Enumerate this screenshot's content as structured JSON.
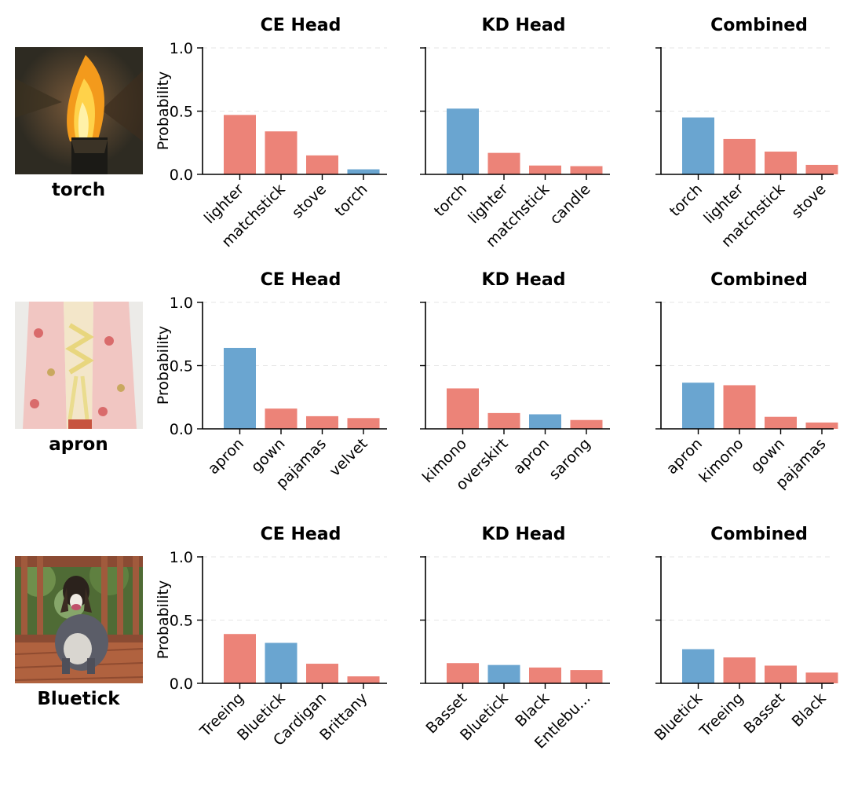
{
  "figure": {
    "colors": {
      "correct": "#6aa5d0",
      "incorrect": "#ec8378",
      "axis": "#000000",
      "grid": "#e6e6e6"
    },
    "rows": [
      {
        "label": "torch",
        "image_icon": "torch-flame-photo"
      },
      {
        "label": "apron",
        "image_icon": "apron-photo"
      },
      {
        "label": "Bluetick",
        "image_icon": "dog-on-deck-photo"
      }
    ]
  },
  "chart_data": [
    {
      "type": "bar",
      "row": "torch",
      "title": "CE Head",
      "ylabel": "Probability",
      "ylim": [
        0,
        1.0
      ],
      "yticks": [
        "0.0",
        "0.5",
        "1.0"
      ],
      "categories": [
        "lighter",
        "matchstick",
        "stove",
        "torch"
      ],
      "values": [
        0.47,
        0.34,
        0.15,
        0.04
      ],
      "correct": [
        false,
        false,
        false,
        true
      ]
    },
    {
      "type": "bar",
      "row": "torch",
      "title": "KD Head",
      "ylabel": "",
      "ylim": [
        0,
        1.0
      ],
      "categories": [
        "torch",
        "lighter",
        "matchstick",
        "candle"
      ],
      "values": [
        0.52,
        0.17,
        0.07,
        0.065
      ],
      "correct": [
        true,
        false,
        false,
        false
      ]
    },
    {
      "type": "bar",
      "row": "torch",
      "title": "Combined",
      "ylabel": "",
      "ylim": [
        0,
        1.0
      ],
      "categories": [
        "torch",
        "lighter",
        "matchstick",
        "stove"
      ],
      "values": [
        0.45,
        0.28,
        0.18,
        0.075
      ],
      "correct": [
        true,
        false,
        false,
        false
      ]
    },
    {
      "type": "bar",
      "row": "apron",
      "title": "CE Head",
      "ylabel": "Probability",
      "ylim": [
        0,
        1.0
      ],
      "yticks": [
        "0.0",
        "0.5",
        "1.0"
      ],
      "categories": [
        "apron",
        "gown",
        "pajamas",
        "velvet"
      ],
      "values": [
        0.64,
        0.16,
        0.1,
        0.085
      ],
      "correct": [
        true,
        false,
        false,
        false
      ]
    },
    {
      "type": "bar",
      "row": "apron",
      "title": "KD Head",
      "ylabel": "",
      "ylim": [
        0,
        1.0
      ],
      "categories": [
        "kimono",
        "overskirt",
        "apron",
        "sarong"
      ],
      "values": [
        0.32,
        0.125,
        0.115,
        0.07
      ],
      "correct": [
        false,
        false,
        true,
        false
      ]
    },
    {
      "type": "bar",
      "row": "apron",
      "title": "Combined",
      "ylabel": "",
      "ylim": [
        0,
        1.0
      ],
      "categories": [
        "apron",
        "kimono",
        "gown",
        "pajamas"
      ],
      "values": [
        0.365,
        0.345,
        0.095,
        0.05
      ],
      "correct": [
        true,
        false,
        false,
        false
      ]
    },
    {
      "type": "bar",
      "row": "Bluetick",
      "title": "CE Head",
      "ylabel": "Probability",
      "ylim": [
        0,
        1.0
      ],
      "yticks": [
        "0.0",
        "0.5",
        "1.0"
      ],
      "categories": [
        "Treeing",
        "Bluetick",
        "Cardigan",
        "Brittany"
      ],
      "values": [
        0.39,
        0.32,
        0.155,
        0.055
      ],
      "correct": [
        false,
        true,
        false,
        false
      ]
    },
    {
      "type": "bar",
      "row": "Bluetick",
      "title": "KD Head",
      "ylabel": "",
      "ylim": [
        0,
        1.0
      ],
      "categories": [
        "Basset",
        "Bluetick",
        "Black",
        "Entlebu..."
      ],
      "values": [
        0.16,
        0.145,
        0.125,
        0.105
      ],
      "correct": [
        false,
        true,
        false,
        false
      ]
    },
    {
      "type": "bar",
      "row": "Bluetick",
      "title": "Combined",
      "ylabel": "",
      "ylim": [
        0,
        1.0
      ],
      "categories": [
        "Bluetick",
        "Treeing",
        "Basset",
        "Black"
      ],
      "values": [
        0.27,
        0.205,
        0.14,
        0.085
      ],
      "correct": [
        true,
        false,
        false,
        false
      ]
    }
  ]
}
